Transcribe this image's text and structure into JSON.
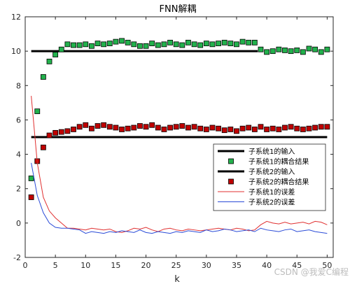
{
  "chart_data": {
    "type": "line",
    "title": "FNN解耦",
    "xlabel": "k",
    "ylabel": "",
    "xlim": [
      0,
      51
    ],
    "ylim": [
      -2,
      12
    ],
    "xticks": [
      0,
      5,
      10,
      15,
      20,
      25,
      30,
      35,
      40,
      45,
      50
    ],
    "yticks": [
      -2,
      0,
      2,
      4,
      6,
      8,
      10,
      12
    ],
    "grid": false,
    "legend_position": "right-center",
    "x": [
      1,
      2,
      3,
      4,
      5,
      6,
      7,
      8,
      9,
      10,
      11,
      12,
      13,
      14,
      15,
      16,
      17,
      18,
      19,
      20,
      21,
      22,
      23,
      24,
      25,
      26,
      27,
      28,
      29,
      30,
      31,
      32,
      33,
      34,
      35,
      36,
      37,
      38,
      39,
      40,
      41,
      42,
      43,
      44,
      45,
      46,
      47,
      48,
      49,
      50
    ],
    "series": [
      {
        "name": "子系统1的输入",
        "style": "line",
        "color": "#000000",
        "width": 3,
        "x": [
          1,
          38.5
        ],
        "values": [
          10,
          10
        ]
      },
      {
        "name": "子系统1的耦合结果",
        "style": "marker",
        "color": "#22b14c",
        "values": [
          2.6,
          6.5,
          8.5,
          9.4,
          9.8,
          10.1,
          10.4,
          10.35,
          10.35,
          10.4,
          10.3,
          10.45,
          10.4,
          10.45,
          10.55,
          10.6,
          10.5,
          10.4,
          10.3,
          10.3,
          10.45,
          10.35,
          10.4,
          10.5,
          10.4,
          10.35,
          10.5,
          10.4,
          10.35,
          10.45,
          10.4,
          10.45,
          10.5,
          10.45,
          10.4,
          10.55,
          10.5,
          10.5,
          10.1,
          9.95,
          10.0,
          10.1,
          10.05,
          10.0,
          10.05,
          9.95,
          10.15,
          10.1,
          9.95,
          10.1
        ]
      },
      {
        "name": "子系统2的输入",
        "style": "line",
        "color": "#000000",
        "width": 3,
        "x": [
          1,
          50
        ],
        "values": [
          5,
          5
        ]
      },
      {
        "name": "子系统2的耦合结果",
        "style": "marker",
        "color": "#c00000",
        "values": [
          1.5,
          3.6,
          4.4,
          5.1,
          5.25,
          5.3,
          5.35,
          5.45,
          5.6,
          5.7,
          5.5,
          5.65,
          5.7,
          5.6,
          5.55,
          5.45,
          5.5,
          5.55,
          5.65,
          5.6,
          5.7,
          5.55,
          5.45,
          5.55,
          5.6,
          5.65,
          5.55,
          5.6,
          5.5,
          5.45,
          5.55,
          5.5,
          5.4,
          5.45,
          5.35,
          5.5,
          5.55,
          5.45,
          5.6,
          5.45,
          5.5,
          5.45,
          5.55,
          5.6,
          5.5,
          5.45,
          5.5,
          5.55,
          5.6,
          5.6
        ]
      },
      {
        "name": "子系统1的误差",
        "style": "line",
        "color": "#e03030",
        "width": 1,
        "values": [
          7.4,
          3.5,
          1.5,
          0.7,
          0.3,
          0.0,
          -0.3,
          -0.3,
          -0.35,
          -0.4,
          -0.3,
          -0.35,
          -0.4,
          -0.35,
          -0.5,
          -0.55,
          -0.45,
          -0.3,
          -0.35,
          -0.25,
          -0.4,
          -0.5,
          -0.35,
          -0.3,
          -0.4,
          -0.45,
          -0.35,
          -0.4,
          -0.45,
          -0.4,
          -0.35,
          -0.3,
          -0.35,
          -0.4,
          -0.3,
          -0.35,
          -0.45,
          -0.4,
          -0.1,
          0.1,
          0.0,
          -0.05,
          0.05,
          -0.05,
          0.0,
          0.05,
          -0.05,
          0.1,
          0.05,
          -0.1
        ]
      },
      {
        "name": "子系统2的误差",
        "style": "line",
        "color": "#2a4bd7",
        "width": 1,
        "values": [
          3.5,
          1.6,
          0.6,
          0.0,
          -0.25,
          -0.3,
          -0.3,
          -0.35,
          -0.4,
          -0.6,
          -0.5,
          -0.55,
          -0.6,
          -0.5,
          -0.55,
          -0.45,
          -0.5,
          -0.55,
          -0.4,
          -0.55,
          -0.6,
          -0.5,
          -0.55,
          -0.6,
          -0.5,
          -0.55,
          -0.45,
          -0.5,
          -0.55,
          -0.4,
          -0.5,
          -0.45,
          -0.35,
          -0.4,
          -0.5,
          -0.45,
          -0.4,
          -0.5,
          -0.3,
          -0.4,
          -0.45,
          -0.5,
          -0.4,
          -0.35,
          -0.5,
          -0.45,
          -0.4,
          -0.5,
          -0.55,
          -0.6
        ]
      }
    ]
  },
  "watermark": "CSDN @我爱C编程"
}
